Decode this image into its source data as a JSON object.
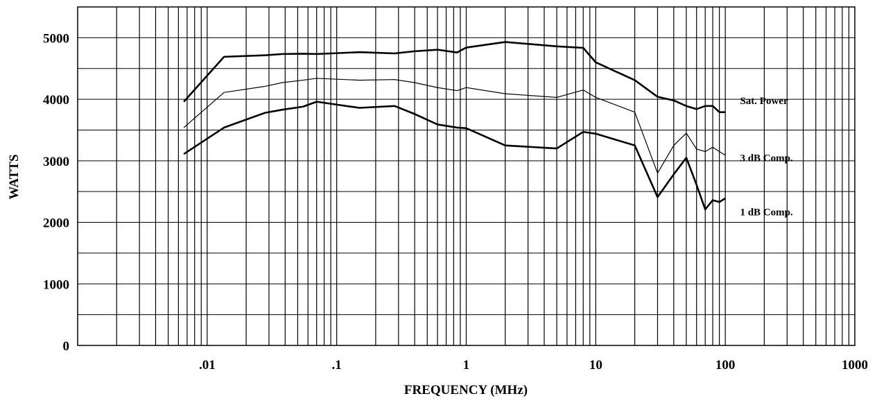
{
  "chart_data": {
    "type": "line",
    "title": "",
    "xlabel": "FREQUENCY (MHz)",
    "ylabel": "WATTS",
    "x_scale": "log",
    "xlim": [
      0.001,
      1000
    ],
    "ylim": [
      0,
      5500
    ],
    "grid": true,
    "x_ticks": [
      {
        "value": 0.01,
        "label": ".01"
      },
      {
        "value": 0.1,
        "label": ".1"
      },
      {
        "value": 1,
        "label": "1"
      },
      {
        "value": 10,
        "label": "10"
      },
      {
        "value": 100,
        "label": "100"
      },
      {
        "value": 1000,
        "label": "1000"
      }
    ],
    "y_ticks": [
      {
        "value": 0,
        "label": "0"
      },
      {
        "value": 1000,
        "label": "1000"
      },
      {
        "value": 2000,
        "label": "2000"
      },
      {
        "value": 3000,
        "label": "3000"
      },
      {
        "value": 4000,
        "label": "4000"
      },
      {
        "value": 5000,
        "label": "5000"
      }
    ],
    "series": [
      {
        "name": "Sat. Power",
        "color": "#000000",
        "weight": "heavy",
        "points": [
          [
            0.0066,
            3960
          ],
          [
            0.0135,
            4690
          ],
          [
            0.028,
            4715
          ],
          [
            0.038,
            4735
          ],
          [
            0.055,
            4740
          ],
          [
            0.07,
            4735
          ],
          [
            0.15,
            4765
          ],
          [
            0.28,
            4745
          ],
          [
            0.4,
            4780
          ],
          [
            0.6,
            4805
          ],
          [
            0.85,
            4760
          ],
          [
            1.0,
            4840
          ],
          [
            2.0,
            4930
          ],
          [
            5.0,
            4860
          ],
          [
            8.0,
            4835
          ],
          [
            10.0,
            4600
          ],
          [
            20.0,
            4310
          ],
          [
            30.0,
            4040
          ],
          [
            40.0,
            3980
          ],
          [
            50.0,
            3890
          ],
          [
            60.0,
            3840
          ],
          [
            70.0,
            3890
          ],
          [
            80.0,
            3890
          ],
          [
            90.0,
            3790
          ],
          [
            100.0,
            3790
          ]
        ]
      },
      {
        "name": "3 dB Comp.",
        "color": "#000000",
        "weight": "light",
        "points": [
          [
            0.0066,
            3540
          ],
          [
            0.0135,
            4110
          ],
          [
            0.028,
            4210
          ],
          [
            0.038,
            4270
          ],
          [
            0.055,
            4310
          ],
          [
            0.07,
            4340
          ],
          [
            0.15,
            4310
          ],
          [
            0.28,
            4320
          ],
          [
            0.4,
            4270
          ],
          [
            0.6,
            4190
          ],
          [
            0.85,
            4140
          ],
          [
            1.0,
            4190
          ],
          [
            2.0,
            4090
          ],
          [
            5.0,
            4030
          ],
          [
            8.0,
            4150
          ],
          [
            10.0,
            4030
          ],
          [
            20.0,
            3790
          ],
          [
            30.0,
            2800
          ],
          [
            40.0,
            3250
          ],
          [
            50.0,
            3450
          ],
          [
            60.0,
            3190
          ],
          [
            70.0,
            3150
          ],
          [
            80.0,
            3220
          ],
          [
            90.0,
            3150
          ],
          [
            100.0,
            3090
          ]
        ]
      },
      {
        "name": "1 dB Comp.",
        "color": "#000000",
        "weight": "heavy",
        "points": [
          [
            0.0066,
            3110
          ],
          [
            0.0135,
            3540
          ],
          [
            0.028,
            3780
          ],
          [
            0.038,
            3830
          ],
          [
            0.055,
            3880
          ],
          [
            0.07,
            3960
          ],
          [
            0.15,
            3860
          ],
          [
            0.28,
            3890
          ],
          [
            0.4,
            3760
          ],
          [
            0.6,
            3590
          ],
          [
            0.85,
            3540
          ],
          [
            1.0,
            3530
          ],
          [
            2.0,
            3250
          ],
          [
            5.0,
            3200
          ],
          [
            8.0,
            3470
          ],
          [
            10.0,
            3440
          ],
          [
            20.0,
            3250
          ],
          [
            30.0,
            2410
          ],
          [
            40.0,
            2780
          ],
          [
            50.0,
            3050
          ],
          [
            60.0,
            2610
          ],
          [
            70.0,
            2210
          ],
          [
            80.0,
            2360
          ],
          [
            90.0,
            2330
          ],
          [
            100.0,
            2390
          ]
        ]
      }
    ],
    "series_labels": [
      {
        "series": "Sat. Power",
        "text": "Sat. Power",
        "anchor": [
          130,
          3980
        ]
      },
      {
        "series": "3 dB Comp.",
        "text": "3 dB Comp.",
        "anchor": [
          130,
          3050
        ]
      },
      {
        "series": "1 dB Comp.",
        "text": "1 dB Comp.",
        "anchor": [
          130,
          2170
        ]
      }
    ]
  }
}
